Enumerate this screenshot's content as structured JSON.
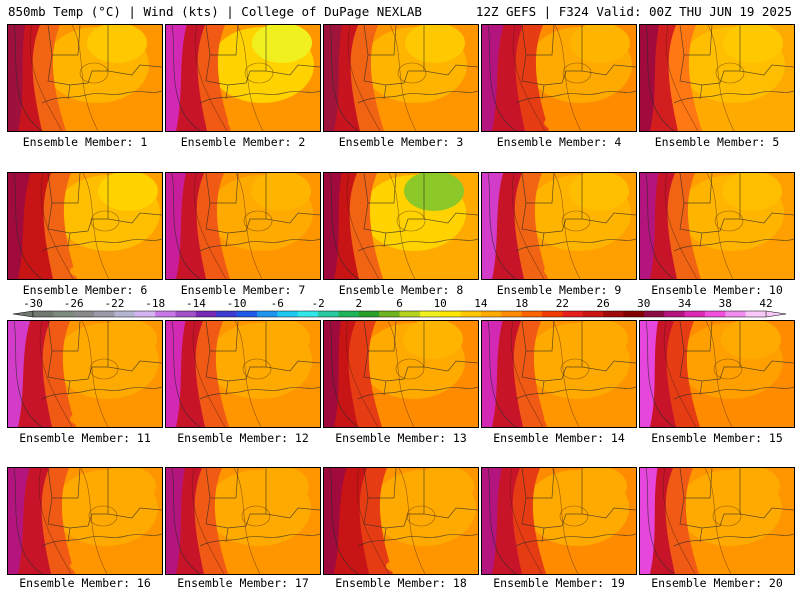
{
  "header": {
    "left": "850mb Temp (°C) | Wind (kts) | College of DuPage NEXLAB",
    "right": "12Z GEFS | F324 Valid: 00Z THU JUN 19 2025"
  },
  "panels": [
    {
      "label": "Ensemble Member: 1"
    },
    {
      "label": "Ensemble Member: 2"
    },
    {
      "label": "Ensemble Member: 3"
    },
    {
      "label": "Ensemble Member: 4"
    },
    {
      "label": "Ensemble Member: 5"
    },
    {
      "label": "Ensemble Member: 6"
    },
    {
      "label": "Ensemble Member: 7"
    },
    {
      "label": "Ensemble Member: 8"
    },
    {
      "label": "Ensemble Member: 9"
    },
    {
      "label": "Ensemble Member: 10"
    },
    {
      "label": "Ensemble Member: 11"
    },
    {
      "label": "Ensemble Member: 12"
    },
    {
      "label": "Ensemble Member: 13"
    },
    {
      "label": "Ensemble Member: 14"
    },
    {
      "label": "Ensemble Member: 15"
    },
    {
      "label": "Ensemble Member: 16"
    },
    {
      "label": "Ensemble Member: 17"
    },
    {
      "label": "Ensemble Member: 18"
    },
    {
      "label": "Ensemble Member: 19"
    },
    {
      "label": "Ensemble Member: 20"
    }
  ],
  "colorbar": {
    "tick_labels": [
      "-30",
      "-26",
      "-22",
      "-18",
      "-14",
      "-10",
      "-6",
      "-2",
      "2",
      "6",
      "10",
      "14",
      "18",
      "22",
      "26",
      "30",
      "34",
      "38",
      "42"
    ],
    "colors": [
      "#707870",
      "#7d8b7d",
      "#8a8a8a",
      "#9a9aa8",
      "#b4b4d2",
      "#d4b4f0",
      "#c878e6",
      "#a050c8",
      "#7828b4",
      "#3c3cd2",
      "#1e5ae6",
      "#1e96f0",
      "#1ec8f0",
      "#32e6e6",
      "#28c8a0",
      "#1eb45a",
      "#28a028",
      "#6eb41e",
      "#b4d21e",
      "#f0f01e",
      "#ffe600",
      "#ffc800",
      "#ffaa00",
      "#ff8c00",
      "#ff6400",
      "#f03c00",
      "#e61e1e",
      "#c81414",
      "#a00a0a",
      "#820000",
      "#8c0a46",
      "#b4147d",
      "#dc28b4",
      "#f050dc",
      "#f08cf0",
      "#f8c8f8"
    ]
  }
}
